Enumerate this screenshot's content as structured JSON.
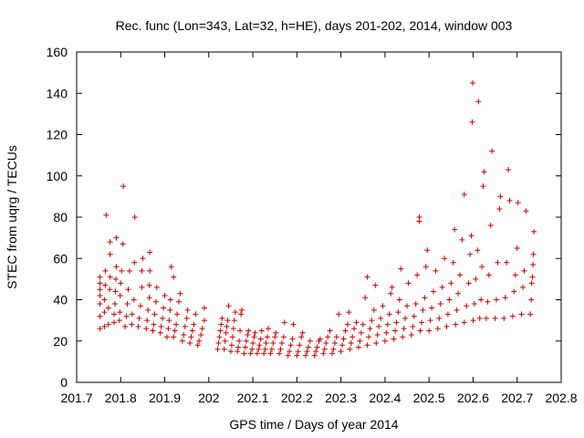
{
  "chart_data": {
    "type": "scatter",
    "title": "Rec. func (Lon=343, Lat=32, h=HE), days 201-202, 2014, window 003",
    "xlabel": "GPS time / Days of year 2014",
    "ylabel": "STEC from uqrg / TECUs",
    "xlim": [
      201.7,
      202.8
    ],
    "ylim": [
      0,
      160
    ],
    "xticks": [
      201.7,
      201.8,
      201.9,
      202.0,
      202.1,
      202.2,
      202.3,
      202.4,
      202.5,
      202.6,
      202.7,
      202.8
    ],
    "xtick_labels": [
      "201.7",
      "201.8",
      "201.9",
      "202",
      "202.1",
      "202.2",
      "202.3",
      "202.4",
      "202.5",
      "202.6",
      "202.7",
      "202.8"
    ],
    "yticks": [
      0,
      20,
      40,
      60,
      80,
      100,
      120,
      140,
      160
    ],
    "ytick_labels": [
      "0",
      "20",
      "40",
      "60",
      "80",
      "100",
      "120",
      "140",
      "160"
    ],
    "grid": false,
    "marker": "+",
    "color": "#cc0000",
    "series": [
      {
        "name": "STEC",
        "points": [
          [
            201.753,
            26
          ],
          [
            201.753,
            32
          ],
          [
            201.753,
            38
          ],
          [
            201.753,
            42
          ],
          [
            201.753,
            45
          ],
          [
            201.753,
            48
          ],
          [
            201.753,
            51
          ],
          [
            201.763,
            27
          ],
          [
            201.763,
            34
          ],
          [
            201.763,
            40
          ],
          [
            201.765,
            47
          ],
          [
            201.765,
            54
          ],
          [
            201.767,
            81
          ],
          [
            201.772,
            28
          ],
          [
            201.772,
            36
          ],
          [
            201.775,
            45
          ],
          [
            201.776,
            51
          ],
          [
            201.776,
            62
          ],
          [
            201.776,
            68
          ],
          [
            201.785,
            29
          ],
          [
            201.785,
            33
          ],
          [
            201.787,
            38
          ],
          [
            201.788,
            44
          ],
          [
            201.789,
            50
          ],
          [
            201.79,
            56
          ],
          [
            201.79,
            70
          ],
          [
            201.797,
            30
          ],
          [
            201.798,
            34
          ],
          [
            201.799,
            42
          ],
          [
            201.8,
            48
          ],
          [
            201.802,
            54
          ],
          [
            201.805,
            67
          ],
          [
            201.806,
            95
          ],
          [
            201.81,
            27
          ],
          [
            201.813,
            32
          ],
          [
            201.815,
            38
          ],
          [
            201.817,
            45
          ],
          [
            201.82,
            54
          ],
          [
            201.825,
            28
          ],
          [
            201.826,
            33
          ],
          [
            201.83,
            40
          ],
          [
            201.831,
            58
          ],
          [
            201.832,
            80
          ],
          [
            201.84,
            27
          ],
          [
            201.842,
            31
          ],
          [
            201.845,
            37
          ],
          [
            201.848,
            46
          ],
          [
            201.848,
            54
          ],
          [
            201.85,
            60
          ],
          [
            201.858,
            26
          ],
          [
            201.86,
            30
          ],
          [
            201.862,
            35
          ],
          [
            201.865,
            41
          ],
          [
            201.865,
            47
          ],
          [
            201.866,
            54
          ],
          [
            201.866,
            63
          ],
          [
            201.873,
            25
          ],
          [
            201.875,
            28
          ],
          [
            201.877,
            33
          ],
          [
            201.88,
            39
          ],
          [
            201.882,
            46
          ],
          [
            201.89,
            24
          ],
          [
            201.892,
            27
          ],
          [
            201.895,
            31
          ],
          [
            201.897,
            36
          ],
          [
            201.9,
            42
          ],
          [
            201.905,
            22
          ],
          [
            201.908,
            26
          ],
          [
            201.91,
            30
          ],
          [
            201.912,
            35
          ],
          [
            201.913,
            40
          ],
          [
            201.915,
            56
          ],
          [
            201.92,
            51
          ],
          [
            201.92,
            22
          ],
          [
            201.923,
            25
          ],
          [
            201.926,
            28
          ],
          [
            201.928,
            33
          ],
          [
            201.932,
            39
          ],
          [
            201.935,
            43
          ],
          [
            201.94,
            20
          ],
          [
            201.943,
            23
          ],
          [
            201.946,
            27
          ],
          [
            201.95,
            31
          ],
          [
            201.952,
            35
          ],
          [
            201.957,
            19
          ],
          [
            201.96,
            22
          ],
          [
            201.963,
            25
          ],
          [
            201.966,
            28
          ],
          [
            201.97,
            33
          ],
          [
            201.975,
            18
          ],
          [
            201.978,
            20
          ],
          [
            201.982,
            23
          ],
          [
            201.985,
            26
          ],
          [
            201.99,
            30
          ],
          [
            201.99,
            36
          ],
          [
            202.02,
            16
          ],
          [
            202.022,
            19
          ],
          [
            202.024,
            22
          ],
          [
            202.026,
            25
          ],
          [
            202.028,
            28
          ],
          [
            202.03,
            31
          ],
          [
            202.035,
            16
          ],
          [
            202.037,
            20
          ],
          [
            202.039,
            24
          ],
          [
            202.041,
            27
          ],
          [
            202.043,
            30
          ],
          [
            202.045,
            37
          ],
          [
            202.05,
            15
          ],
          [
            202.052,
            18
          ],
          [
            202.054,
            22
          ],
          [
            202.056,
            26
          ],
          [
            202.058,
            30
          ],
          [
            202.06,
            34
          ],
          [
            202.065,
            15
          ],
          [
            202.067,
            17
          ],
          [
            202.069,
            20
          ],
          [
            202.071,
            25
          ],
          [
            202.073,
            33
          ],
          [
            202.075,
            35
          ],
          [
            202.08,
            14
          ],
          [
            202.083,
            17
          ],
          [
            202.085,
            20
          ],
          [
            202.088,
            23
          ],
          [
            202.09,
            25
          ],
          [
            202.095,
            14
          ],
          [
            202.098,
            16
          ],
          [
            202.1,
            19
          ],
          [
            202.103,
            22
          ],
          [
            202.105,
            24
          ],
          [
            202.11,
            14
          ],
          [
            202.113,
            16
          ],
          [
            202.115,
            18
          ],
          [
            202.118,
            21
          ],
          [
            202.12,
            25
          ],
          [
            202.125,
            14
          ],
          [
            202.128,
            16
          ],
          [
            202.13,
            19
          ],
          [
            202.133,
            22
          ],
          [
            202.135,
            26
          ],
          [
            202.14,
            14
          ],
          [
            202.143,
            16
          ],
          [
            202.146,
            19
          ],
          [
            202.15,
            22
          ],
          [
            202.152,
            24
          ],
          [
            202.16,
            14
          ],
          [
            202.163,
            16
          ],
          [
            202.166,
            19
          ],
          [
            202.17,
            22
          ],
          [
            202.172,
            29
          ],
          [
            202.18,
            13
          ],
          [
            202.183,
            15
          ],
          [
            202.186,
            18
          ],
          [
            202.19,
            21
          ],
          [
            202.192,
            28
          ],
          [
            202.2,
            13
          ],
          [
            202.203,
            15
          ],
          [
            202.206,
            18
          ],
          [
            202.21,
            22
          ],
          [
            202.213,
            24
          ],
          [
            202.22,
            13
          ],
          [
            202.223,
            15
          ],
          [
            202.226,
            17
          ],
          [
            202.23,
            20
          ],
          [
            202.24,
            13
          ],
          [
            202.243,
            15
          ],
          [
            202.246,
            17
          ],
          [
            202.25,
            20
          ],
          [
            202.253,
            21
          ],
          [
            202.26,
            14
          ],
          [
            202.263,
            16
          ],
          [
            202.266,
            19
          ],
          [
            202.27,
            22
          ],
          [
            202.275,
            25
          ],
          [
            202.28,
            14
          ],
          [
            202.283,
            16
          ],
          [
            202.286,
            19
          ],
          [
            202.29,
            22
          ],
          [
            202.295,
            33
          ],
          [
            202.3,
            15
          ],
          [
            202.303,
            18
          ],
          [
            202.306,
            21
          ],
          [
            202.31,
            25
          ],
          [
            202.315,
            28
          ],
          [
            202.318,
            34
          ],
          [
            202.32,
            16
          ],
          [
            202.323,
            19
          ],
          [
            202.326,
            22
          ],
          [
            202.33,
            26
          ],
          [
            202.335,
            29
          ],
          [
            202.34,
            17
          ],
          [
            202.343,
            20
          ],
          [
            202.346,
            24
          ],
          [
            202.35,
            28
          ],
          [
            202.355,
            41
          ],
          [
            202.36,
            51
          ],
          [
            202.36,
            18
          ],
          [
            202.363,
            22
          ],
          [
            202.366,
            26
          ],
          [
            202.37,
            30
          ],
          [
            202.375,
            35
          ],
          [
            202.378,
            47
          ],
          [
            202.38,
            19
          ],
          [
            202.383,
            23
          ],
          [
            202.386,
            27
          ],
          [
            202.39,
            31
          ],
          [
            202.395,
            37
          ],
          [
            202.4,
            20
          ],
          [
            202.403,
            24
          ],
          [
            202.406,
            28
          ],
          [
            202.41,
            33
          ],
          [
            202.413,
            43
          ],
          [
            202.416,
            46
          ],
          [
            202.42,
            21
          ],
          [
            202.423,
            25
          ],
          [
            202.426,
            29
          ],
          [
            202.43,
            34
          ],
          [
            202.433,
            40
          ],
          [
            202.436,
            55
          ],
          [
            202.44,
            22
          ],
          [
            202.443,
            26
          ],
          [
            202.446,
            31
          ],
          [
            202.45,
            37
          ],
          [
            202.453,
            48
          ],
          [
            202.46,
            23
          ],
          [
            202.463,
            27
          ],
          [
            202.466,
            32
          ],
          [
            202.47,
            38
          ],
          [
            202.473,
            52
          ],
          [
            202.478,
            80
          ],
          [
            202.478,
            78
          ],
          [
            202.48,
            25
          ],
          [
            202.483,
            29
          ],
          [
            202.486,
            35
          ],
          [
            202.49,
            41
          ],
          [
            202.493,
            56
          ],
          [
            202.496,
            64
          ],
          [
            202.5,
            25
          ],
          [
            202.503,
            30
          ],
          [
            202.506,
            36
          ],
          [
            202.51,
            44
          ],
          [
            202.515,
            54
          ],
          [
            202.52,
            26
          ],
          [
            202.523,
            31
          ],
          [
            202.526,
            38
          ],
          [
            202.53,
            46
          ],
          [
            202.535,
            60
          ],
          [
            202.54,
            27
          ],
          [
            202.543,
            33
          ],
          [
            202.546,
            40
          ],
          [
            202.55,
            48
          ],
          [
            202.555,
            58
          ],
          [
            202.558,
            74
          ],
          [
            202.56,
            28
          ],
          [
            202.563,
            35
          ],
          [
            202.566,
            43
          ],
          [
            202.57,
            52
          ],
          [
            202.575,
            69
          ],
          [
            202.58,
            91
          ],
          [
            202.58,
            29
          ],
          [
            202.585,
            37
          ],
          [
            202.59,
            48
          ],
          [
            202.593,
            62
          ],
          [
            202.596,
            71
          ],
          [
            202.598,
            126
          ],
          [
            202.599,
            145
          ],
          [
            202.6,
            30
          ],
          [
            202.603,
            38
          ],
          [
            202.606,
            50
          ],
          [
            202.61,
            64
          ],
          [
            202.612,
            136
          ],
          [
            202.615,
            31
          ],
          [
            202.618,
            40
          ],
          [
            202.62,
            56
          ],
          [
            202.623,
            95
          ],
          [
            202.625,
            102
          ],
          [
            202.63,
            31
          ],
          [
            202.633,
            39
          ],
          [
            202.636,
            52
          ],
          [
            202.64,
            76
          ],
          [
            202.643,
            112
          ],
          [
            202.65,
            31
          ],
          [
            202.653,
            40
          ],
          [
            202.656,
            58
          ],
          [
            202.66,
            84
          ],
          [
            202.662,
            90
          ],
          [
            202.67,
            31
          ],
          [
            202.673,
            41
          ],
          [
            202.676,
            58
          ],
          [
            202.68,
            103
          ],
          [
            202.683,
            88
          ],
          [
            202.69,
            32
          ],
          [
            202.693,
            44
          ],
          [
            202.696,
            52
          ],
          [
            202.7,
            65
          ],
          [
            202.702,
            87
          ],
          [
            202.71,
            33
          ],
          [
            202.713,
            46
          ],
          [
            202.716,
            54
          ],
          [
            202.72,
            83
          ],
          [
            202.73,
            33
          ],
          [
            202.732,
            40
          ],
          [
            202.733,
            48
          ],
          [
            202.735,
            51
          ],
          [
            202.736,
            57
          ],
          [
            202.737,
            62
          ],
          [
            202.738,
            73
          ]
        ]
      }
    ]
  }
}
